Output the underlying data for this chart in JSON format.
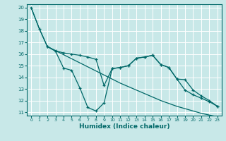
{
  "xlabel": "Humidex (Indice chaleur)",
  "bg_color": "#c8e8e8",
  "grid_color": "#ffffff",
  "line_color": "#006868",
  "xlim": [
    -0.5,
    23.5
  ],
  "ylim": [
    10.7,
    20.3
  ],
  "xticks": [
    0,
    1,
    2,
    3,
    4,
    5,
    6,
    7,
    8,
    9,
    10,
    11,
    12,
    13,
    14,
    15,
    16,
    17,
    18,
    19,
    20,
    21,
    22,
    23
  ],
  "yticks": [
    11,
    12,
    13,
    14,
    15,
    16,
    17,
    18,
    19,
    20
  ],
  "line1_x": [
    0,
    1,
    2,
    3,
    4,
    5,
    6,
    7,
    8,
    9,
    10,
    11,
    12,
    13,
    14,
    15,
    16,
    17,
    18,
    19,
    20,
    21,
    22,
    23
  ],
  "line1_y": [
    20.0,
    18.2,
    16.65,
    16.3,
    15.95,
    15.6,
    15.25,
    14.9,
    14.55,
    14.2,
    13.85,
    13.5,
    13.2,
    12.9,
    12.6,
    12.3,
    12.0,
    11.75,
    11.5,
    11.3,
    11.1,
    10.9,
    10.75,
    10.6
  ],
  "line2_x": [
    0,
    1,
    2,
    3,
    4,
    5,
    6,
    7,
    8,
    9,
    10,
    11,
    12,
    13,
    14,
    15,
    16,
    17,
    18,
    19,
    20,
    21,
    22,
    23
  ],
  "line2_y": [
    20.0,
    18.2,
    16.65,
    16.3,
    16.1,
    16.0,
    15.9,
    15.75,
    15.55,
    13.3,
    14.75,
    14.85,
    15.0,
    15.65,
    15.75,
    15.9,
    15.1,
    14.85,
    13.85,
    12.9,
    12.5,
    12.2,
    11.9,
    11.5
  ],
  "line3_x": [
    2,
    3,
    4,
    5,
    6,
    7,
    8,
    9,
    10,
    11,
    12,
    13,
    14,
    15,
    16,
    17,
    18,
    19,
    20,
    21,
    22,
    23
  ],
  "line3_y": [
    16.65,
    16.25,
    14.8,
    14.6,
    13.1,
    11.4,
    11.1,
    11.8,
    14.75,
    14.85,
    15.0,
    15.65,
    15.75,
    15.9,
    15.1,
    14.85,
    13.85,
    13.8,
    12.9,
    12.4,
    12.0,
    11.5
  ]
}
